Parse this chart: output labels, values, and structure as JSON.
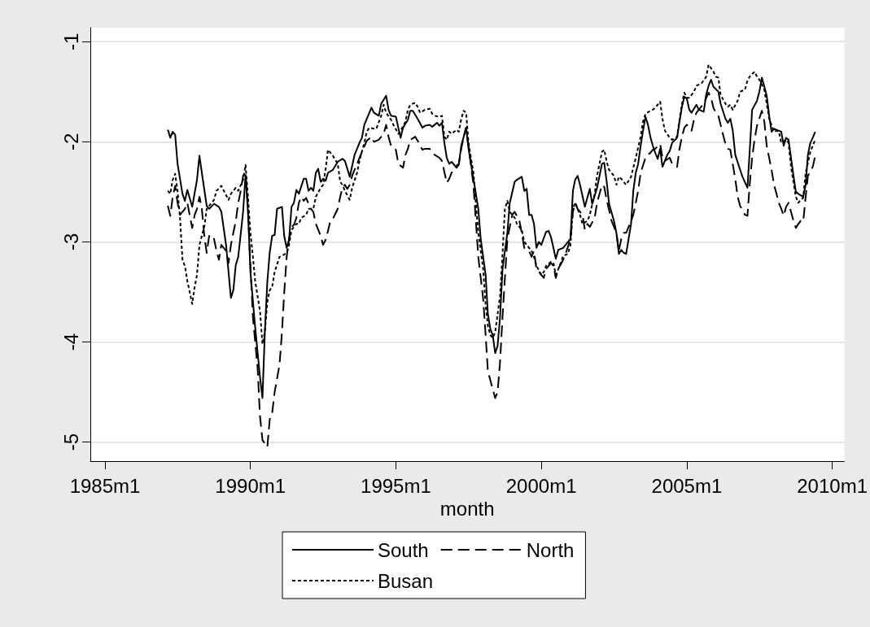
{
  "chart_data": {
    "type": "line",
    "xlabel": "month",
    "xlim": [
      "1984-07",
      "2010-06"
    ],
    "xticks": [
      {
        "value": "1985-01",
        "label": "1985m1"
      },
      {
        "value": "1990-01",
        "label": "1990m1"
      },
      {
        "value": "1995-01",
        "label": "1995m1"
      },
      {
        "value": "2000-01",
        "label": "2000m1"
      },
      {
        "value": "2005-01",
        "label": "2005m1"
      },
      {
        "value": "2010-01",
        "label": "2010m1"
      }
    ],
    "ylim": [
      -5.19,
      -0.86
    ],
    "yticks": [
      -5,
      -4,
      -3,
      -2,
      -1
    ],
    "grid": "y",
    "legend": "bottom",
    "marker": "none",
    "series": [
      {
        "name": "South",
        "color": "#000000",
        "line_style": "solid",
        "x": [
          "1987-03",
          "1987-04",
          "1987-05",
          "1987-06",
          "1987-07",
          "1987-09",
          "1987-10",
          "1987-11",
          "1988-01",
          "1988-03",
          "1988-04",
          "1988-05",
          "1988-07",
          "1988-08",
          "1988-10",
          "1988-12",
          "1989-01",
          "1989-03",
          "1989-05",
          "1989-06",
          "1989-07",
          "1989-08",
          "1989-10",
          "1989-11",
          "1989-12",
          "1990-01",
          "1990-03",
          "1990-05",
          "1990-06",
          "1990-07",
          "1990-08",
          "1990-09",
          "1990-10",
          "1990-11",
          "1990-12",
          "1991-02",
          "1991-03",
          "1991-04",
          "1991-05",
          "1991-06",
          "1991-07",
          "1991-08",
          "1991-09",
          "1991-11",
          "1991-12",
          "1992-01",
          "1992-02",
          "1992-03",
          "1992-04",
          "1992-05",
          "1992-06",
          "1992-07",
          "1992-08",
          "1992-09",
          "1992-11",
          "1993-01",
          "1993-03",
          "1993-04",
          "1993-06",
          "1993-08",
          "1993-10",
          "1993-11",
          "1993-12",
          "1994-03",
          "1994-04",
          "1994-06",
          "1994-07",
          "1994-09",
          "1994-10",
          "1994-11",
          "1995-01",
          "1995-03",
          "1995-04",
          "1995-06",
          "1995-07",
          "1995-08",
          "1995-10",
          "1995-12",
          "1996-01",
          "1996-03",
          "1996-04",
          "1996-06",
          "1996-07",
          "1996-08",
          "1996-09",
          "1996-10",
          "1996-11",
          "1996-12",
          "1997-02",
          "1997-03",
          "1997-04",
          "1997-06",
          "1997-07",
          "1997-09",
          "1997-11",
          "1997-12",
          "1998-02",
          "1998-03",
          "1998-04",
          "1998-05",
          "1998-06",
          "1998-07",
          "1998-08",
          "1998-09",
          "1998-11",
          "1998-12",
          "1999-02",
          "1999-03",
          "1999-05",
          "1999-06",
          "1999-07",
          "1999-08",
          "1999-09",
          "1999-10",
          "1999-11",
          "1999-12",
          "2000-01",
          "2000-03",
          "2000-04",
          "2000-05",
          "2000-06",
          "2000-07",
          "2000-08",
          "2000-10",
          "2000-11",
          "2001-01",
          "2001-02",
          "2001-03",
          "2001-04",
          "2001-05",
          "2001-07",
          "2001-09",
          "2001-10",
          "2001-12",
          "2002-02",
          "2002-03",
          "2002-04",
          "2002-05",
          "2002-07",
          "2002-08",
          "2002-09",
          "2002-10",
          "2002-11",
          "2002-12",
          "2003-01",
          "2003-02",
          "2003-03",
          "2003-04",
          "2003-05",
          "2003-06",
          "2003-07",
          "2003-08",
          "2003-09",
          "2003-10",
          "2003-11",
          "2003-12",
          "2004-01",
          "2004-02",
          "2004-03",
          "2004-05",
          "2004-06",
          "2004-07",
          "2004-09",
          "2004-10",
          "2004-11",
          "2004-12",
          "2005-01",
          "2005-02",
          "2005-03",
          "2005-05",
          "2005-06",
          "2005-08",
          "2005-09",
          "2005-10",
          "2005-11",
          "2005-12",
          "2006-02",
          "2006-03",
          "2006-05",
          "2006-06",
          "2006-07",
          "2006-08",
          "2006-09",
          "2006-11",
          "2006-12",
          "2007-02",
          "2007-03",
          "2007-04",
          "2007-06",
          "2007-07",
          "2007-08",
          "2007-09",
          "2007-10",
          "2007-11",
          "2007-12",
          "2008-01",
          "2008-02",
          "2008-04",
          "2008-05",
          "2008-06",
          "2008-07",
          "2008-08",
          "2008-09",
          "2008-10",
          "2008-11",
          "2009-01",
          "2009-02",
          "2009-03",
          "2009-04",
          "2009-05",
          "2009-06"
        ],
        "values": [
          -1.88,
          -1.96,
          -1.9,
          -1.93,
          -2.22,
          -2.52,
          -2.59,
          -2.48,
          -2.65,
          -2.38,
          -2.14,
          -2.31,
          -2.64,
          -2.67,
          -2.62,
          -2.65,
          -2.7,
          -3.03,
          -3.56,
          -3.48,
          -3.23,
          -3.15,
          -2.7,
          -2.33,
          -2.7,
          -3.3,
          -3.85,
          -4.35,
          -4.56,
          -3.9,
          -3.4,
          -3.1,
          -2.94,
          -2.93,
          -2.67,
          -2.65,
          -2.94,
          -3.06,
          -2.98,
          -2.65,
          -2.61,
          -2.48,
          -2.52,
          -2.37,
          -2.37,
          -2.49,
          -2.46,
          -2.49,
          -2.31,
          -2.27,
          -2.4,
          -2.37,
          -2.39,
          -2.31,
          -2.28,
          -2.2,
          -2.17,
          -2.19,
          -2.35,
          -2.13,
          -2.01,
          -1.96,
          -1.83,
          -1.66,
          -1.71,
          -1.74,
          -1.62,
          -1.54,
          -1.68,
          -1.74,
          -1.75,
          -1.96,
          -1.86,
          -1.78,
          -1.69,
          -1.69,
          -1.77,
          -1.86,
          -1.84,
          -1.83,
          -1.85,
          -1.81,
          -1.84,
          -1.81,
          -2.01,
          -2.16,
          -2.22,
          -2.2,
          -2.26,
          -2.23,
          -2.04,
          -1.86,
          -2.07,
          -2.37,
          -2.67,
          -2.97,
          -3.33,
          -3.72,
          -3.87,
          -3.93,
          -4.11,
          -4.04,
          -3.75,
          -3.27,
          -2.91,
          -2.61,
          -2.4,
          -2.38,
          -2.35,
          -2.49,
          -2.47,
          -2.73,
          -2.73,
          -2.82,
          -3.06,
          -3.0,
          -3.03,
          -2.9,
          -2.89,
          -2.95,
          -3.06,
          -3.17,
          -3.08,
          -3.06,
          -3.03,
          -2.97,
          -2.49,
          -2.38,
          -2.34,
          -2.43,
          -2.65,
          -2.47,
          -2.62,
          -2.46,
          -2.22,
          -2.21,
          -2.4,
          -2.62,
          -2.79,
          -2.91,
          -3.12,
          -3.08,
          -3.11,
          -3.12,
          -2.97,
          -2.82,
          -2.49,
          -2.31,
          -2.22,
          -2.04,
          -1.89,
          -1.75,
          -1.83,
          -1.95,
          -2.04,
          -2.11,
          -2.17,
          -2.07,
          -2.25,
          -2.13,
          -2.09,
          -2.01,
          -1.96,
          -1.8,
          -1.65,
          -1.55,
          -1.57,
          -1.68,
          -1.71,
          -1.63,
          -1.68,
          -1.7,
          -1.53,
          -1.44,
          -1.38,
          -1.45,
          -1.5,
          -1.62,
          -1.77,
          -1.81,
          -1.77,
          -1.89,
          -2.13,
          -2.28,
          -2.35,
          -2.46,
          -2.1,
          -1.68,
          -1.59,
          -1.5,
          -1.36,
          -1.45,
          -1.54,
          -1.74,
          -1.9,
          -1.87,
          -1.88,
          -1.9,
          -2.04,
          -1.96,
          -1.98,
          -2.16,
          -2.34,
          -2.5,
          -2.52,
          -2.55,
          -2.43,
          -2.13,
          -2.01,
          -1.96,
          -1.9
        ]
      },
      {
        "name": "North",
        "color": "#000000",
        "line_style": "dashed",
        "x": [
          "1987-03",
          "1987-04",
          "1987-05",
          "1987-06",
          "1987-07",
          "1987-08",
          "1987-10",
          "1987-11",
          "1988-01",
          "1988-02",
          "1988-03",
          "1988-04",
          "1988-05",
          "1988-06",
          "1988-07",
          "1988-08",
          "1988-09",
          "1988-10",
          "1988-11",
          "1988-12",
          "1989-01",
          "1989-03",
          "1989-04",
          "1989-05",
          "1989-07",
          "1989-08",
          "1989-09",
          "1989-10",
          "1989-11",
          "1989-12",
          "1990-01",
          "1990-02",
          "1990-04",
          "1990-05",
          "1990-06",
          "1990-08",
          "1990-09",
          "1990-10",
          "1990-11",
          "1991-01",
          "1991-02",
          "1991-03",
          "1991-04",
          "1991-05",
          "1991-06",
          "1991-07",
          "1991-08",
          "1991-09",
          "1991-10",
          "1991-11",
          "1991-12",
          "1992-01",
          "1992-02",
          "1992-03",
          "1992-04",
          "1992-06",
          "1992-07",
          "1992-08",
          "1992-09",
          "1992-10",
          "1992-11",
          "1993-01",
          "1993-02",
          "1993-03",
          "1993-04",
          "1993-05",
          "1993-06",
          "1993-07",
          "1993-09",
          "1993-11",
          "1994-01",
          "1994-03",
          "1994-04",
          "1994-05",
          "1994-06",
          "1994-08",
          "1994-09",
          "1994-10",
          "1994-11",
          "1994-12",
          "1995-01",
          "1995-02",
          "1995-04",
          "1995-05",
          "1995-06",
          "1995-07",
          "1995-09",
          "1995-10",
          "1995-12",
          "1996-01",
          "1996-03",
          "1996-04",
          "1996-05",
          "1996-07",
          "1996-08",
          "1996-10",
          "1996-11",
          "1996-12",
          "1997-01",
          "1997-03",
          "1997-04",
          "1997-05",
          "1997-06",
          "1997-07",
          "1997-09",
          "1997-10",
          "1997-11",
          "1998-01",
          "1998-02",
          "1998-03",
          "1998-05",
          "1998-06",
          "1998-07",
          "1998-08",
          "1998-09",
          "1998-10",
          "1998-11",
          "1998-12",
          "1999-01",
          "1999-02",
          "1999-04",
          "1999-05",
          "1999-06",
          "1999-08",
          "1999-09",
          "1999-10",
          "1999-11",
          "2000-01",
          "2000-02",
          "2000-03",
          "2000-05",
          "2000-06",
          "2000-07",
          "2000-08",
          "2000-10",
          "2000-11",
          "2001-01",
          "2001-02",
          "2001-03",
          "2001-04",
          "2001-06",
          "2001-07",
          "2001-08",
          "2001-09",
          "2001-11",
          "2001-12",
          "2002-02",
          "2002-03",
          "2002-04",
          "2002-06",
          "2002-08",
          "2002-09",
          "2002-10",
          "2002-11",
          "2002-12",
          "2003-02",
          "2003-03",
          "2003-04",
          "2003-05",
          "2003-06",
          "2003-08",
          "2003-09",
          "2003-10",
          "2003-11",
          "2003-12",
          "2004-02",
          "2004-03",
          "2004-04",
          "2004-06",
          "2004-07",
          "2004-09",
          "2004-10",
          "2004-11",
          "2004-12",
          "2005-01",
          "2005-03",
          "2005-04",
          "2005-05",
          "2005-07",
          "2005-08",
          "2005-10",
          "2005-11",
          "2005-12",
          "2006-01",
          "2006-02",
          "2006-04",
          "2006-05",
          "2006-06",
          "2006-07",
          "2006-09",
          "2006-10",
          "2006-11",
          "2007-01",
          "2007-02",
          "2007-03",
          "2007-04",
          "2007-05",
          "2007-06",
          "2007-08",
          "2007-09",
          "2007-10",
          "2007-12",
          "2008-01",
          "2008-02",
          "2008-03",
          "2008-04",
          "2008-05",
          "2008-06",
          "2008-07",
          "2008-09",
          "2008-10",
          "2008-11",
          "2008-12",
          "2009-01",
          "2009-02",
          "2009-03",
          "2009-05",
          "2009-06"
        ],
        "values": [
          -2.64,
          -2.74,
          -2.55,
          -2.44,
          -2.61,
          -2.73,
          -2.67,
          -2.61,
          -2.86,
          -2.73,
          -2.67,
          -2.55,
          -2.67,
          -2.94,
          -3.11,
          -2.94,
          -2.98,
          -2.97,
          -3.09,
          -3.18,
          -3.03,
          -3.09,
          -3.21,
          -3.03,
          -2.79,
          -2.61,
          -2.49,
          -2.34,
          -2.31,
          -2.67,
          -3.24,
          -3.75,
          -4.26,
          -4.74,
          -4.98,
          -5.05,
          -4.77,
          -4.71,
          -4.5,
          -4.23,
          -3.9,
          -3.51,
          -3.15,
          -2.97,
          -2.85,
          -2.83,
          -2.76,
          -2.61,
          -2.55,
          -2.59,
          -2.56,
          -2.62,
          -2.67,
          -2.7,
          -2.82,
          -2.94,
          -3.03,
          -2.98,
          -2.89,
          -2.79,
          -2.77,
          -2.67,
          -2.55,
          -2.46,
          -2.43,
          -2.47,
          -2.43,
          -2.34,
          -2.22,
          -2.1,
          -1.99,
          -1.95,
          -2.0,
          -1.99,
          -1.98,
          -1.92,
          -1.83,
          -1.95,
          -2.04,
          -2.07,
          -2.08,
          -2.22,
          -2.26,
          -2.13,
          -2.07,
          -1.98,
          -1.95,
          -1.99,
          -2.08,
          -2.07,
          -2.07,
          -2.11,
          -2.13,
          -2.16,
          -2.19,
          -2.41,
          -2.37,
          -2.31,
          -2.26,
          -2.22,
          -2.07,
          -1.95,
          -1.86,
          -2.04,
          -2.43,
          -2.79,
          -3.15,
          -3.57,
          -3.93,
          -4.29,
          -4.47,
          -4.56,
          -4.5,
          -4.2,
          -3.75,
          -3.36,
          -2.97,
          -2.85,
          -2.73,
          -2.7,
          -2.79,
          -2.91,
          -3.06,
          -3.09,
          -3.15,
          -3.09,
          -3.27,
          -3.33,
          -3.36,
          -3.27,
          -3.21,
          -3.24,
          -3.36,
          -3.27,
          -3.18,
          -3.12,
          -2.97,
          -2.7,
          -2.61,
          -2.67,
          -2.73,
          -2.88,
          -2.82,
          -2.85,
          -2.76,
          -2.61,
          -2.43,
          -2.45,
          -2.58,
          -2.79,
          -2.91,
          -3.09,
          -2.97,
          -2.91,
          -2.91,
          -2.79,
          -2.73,
          -2.61,
          -2.49,
          -2.31,
          -2.16,
          -2.13,
          -2.11,
          -2.08,
          -2.07,
          -2.02,
          -2.16,
          -2.19,
          -2.16,
          -2.22,
          -2.25,
          -2.07,
          -1.95,
          -1.86,
          -1.83,
          -1.89,
          -1.78,
          -1.71,
          -1.65,
          -1.62,
          -1.51,
          -1.56,
          -1.66,
          -1.71,
          -1.74,
          -1.93,
          -2.02,
          -2.07,
          -2.08,
          -2.37,
          -2.55,
          -2.64,
          -2.73,
          -2.74,
          -2.43,
          -2.16,
          -1.98,
          -1.84,
          -1.69,
          -1.8,
          -2.04,
          -2.28,
          -2.43,
          -2.52,
          -2.61,
          -2.67,
          -2.74,
          -2.65,
          -2.61,
          -2.79,
          -2.86,
          -2.82,
          -2.79,
          -2.8,
          -2.55,
          -2.34,
          -2.25,
          -2.14
        ]
      },
      {
        "name": "Busan",
        "color": "#000000",
        "line_style": "dotted",
        "x": [
          "1987-03",
          "1987-04",
          "1987-05",
          "1987-06",
          "1987-07",
          "1987-08",
          "1987-09",
          "1987-10",
          "1987-11",
          "1988-01",
          "1988-02",
          "1988-03",
          "1988-04",
          "1988-05",
          "1988-06",
          "1988-07",
          "1988-09",
          "1988-10",
          "1988-11",
          "1989-01",
          "1989-02",
          "1989-04",
          "1989-05",
          "1989-07",
          "1989-08",
          "1989-10",
          "1989-11",
          "1989-12",
          "1990-01",
          "1990-02",
          "1990-03",
          "1990-05",
          "1990-06",
          "1990-07",
          "1990-08",
          "1990-09",
          "1990-10",
          "1990-11",
          "1991-01",
          "1991-02",
          "1991-04",
          "1991-05",
          "1991-06",
          "1991-08",
          "1991-09",
          "1991-10",
          "1991-12",
          "1992-01",
          "1992-03",
          "1992-04",
          "1992-06",
          "1992-07",
          "1992-08",
          "1992-09",
          "1992-10",
          "1992-11",
          "1993-01",
          "1993-02",
          "1993-03",
          "1993-04",
          "1993-06",
          "1993-07",
          "1993-09",
          "1993-10",
          "1993-12",
          "1994-01",
          "1994-02",
          "1994-04",
          "1994-05",
          "1994-07",
          "1994-08",
          "1994-09",
          "1994-11",
          "1994-12",
          "1995-02",
          "1995-03",
          "1995-05",
          "1995-06",
          "1995-07",
          "1995-09",
          "1995-10",
          "1995-11",
          "1996-01",
          "1996-03",
          "1996-04",
          "1996-05",
          "1996-07",
          "1996-08",
          "1996-09",
          "1996-10",
          "1996-11",
          "1996-12",
          "1997-02",
          "1997-03",
          "1997-04",
          "1997-05",
          "1997-06",
          "1997-07",
          "1997-09",
          "1997-10",
          "1997-11",
          "1998-01",
          "1998-02",
          "1998-03",
          "1998-04",
          "1998-05",
          "1998-06",
          "1998-08",
          "1998-09",
          "1998-10",
          "1998-11",
          "1998-12",
          "1999-02",
          "1999-03",
          "1999-05",
          "1999-06",
          "1999-08",
          "1999-09",
          "1999-10",
          "1999-11",
          "2000-01",
          "2000-02",
          "2000-03",
          "2000-05",
          "2000-06",
          "2000-07",
          "2000-09",
          "2000-10",
          "2000-12",
          "2001-01",
          "2001-02",
          "2001-03",
          "2001-05",
          "2001-06",
          "2001-08",
          "2001-09",
          "2001-11",
          "2001-12",
          "2002-02",
          "2002-03",
          "2002-04",
          "2002-05",
          "2002-07",
          "2002-08",
          "2002-09",
          "2002-10",
          "2002-12",
          "2003-02",
          "2003-03",
          "2003-04",
          "2003-06",
          "2003-07",
          "2003-08",
          "2003-10",
          "2003-11",
          "2003-12",
          "2004-02",
          "2004-03",
          "2004-04",
          "2004-06",
          "2004-07",
          "2004-09",
          "2004-10",
          "2004-11",
          "2004-12",
          "2005-01",
          "2005-02",
          "2005-04",
          "2005-05",
          "2005-07",
          "2005-09",
          "2005-10",
          "2005-12",
          "2006-01",
          "2006-02",
          "2006-03",
          "2006-05",
          "2006-06",
          "2006-07",
          "2006-08",
          "2006-10",
          "2006-11",
          "2007-01",
          "2007-02",
          "2007-03",
          "2007-05",
          "2007-06",
          "2007-07",
          "2007-09",
          "2007-10",
          "2007-11",
          "2008-01",
          "2008-02",
          "2008-03",
          "2008-04",
          "2008-06",
          "2008-07",
          "2008-08",
          "2008-10",
          "2008-11",
          "2008-12",
          "2009-01",
          "2009-02",
          "2009-04",
          "2009-05",
          "2009-06"
        ],
        "values": [
          -2.49,
          -2.52,
          -2.38,
          -2.32,
          -2.49,
          -2.76,
          -3.18,
          -3.24,
          -3.39,
          -3.62,
          -3.45,
          -3.33,
          -3.03,
          -2.94,
          -2.85,
          -2.67,
          -2.61,
          -2.58,
          -2.49,
          -2.44,
          -2.49,
          -2.58,
          -2.52,
          -2.46,
          -2.49,
          -2.38,
          -2.23,
          -2.55,
          -2.91,
          -3.15,
          -3.39,
          -3.69,
          -4.02,
          -3.9,
          -3.6,
          -3.48,
          -3.45,
          -3.3,
          -3.15,
          -3.14,
          -3.11,
          -3.03,
          -2.88,
          -2.82,
          -2.82,
          -2.76,
          -2.73,
          -2.67,
          -2.67,
          -2.55,
          -2.46,
          -2.43,
          -2.28,
          -2.08,
          -2.11,
          -2.14,
          -2.22,
          -2.4,
          -2.43,
          -2.49,
          -2.58,
          -2.46,
          -2.31,
          -2.19,
          -2.01,
          -1.9,
          -1.86,
          -1.87,
          -1.87,
          -1.74,
          -1.63,
          -1.71,
          -1.78,
          -1.83,
          -1.92,
          -1.89,
          -1.8,
          -1.68,
          -1.63,
          -1.61,
          -1.65,
          -1.71,
          -1.68,
          -1.67,
          -1.72,
          -1.74,
          -1.75,
          -1.74,
          -1.95,
          -1.98,
          -1.9,
          -1.92,
          -1.88,
          -1.9,
          -1.77,
          -1.69,
          -1.71,
          -2.01,
          -2.31,
          -2.61,
          -2.91,
          -3.27,
          -3.63,
          -3.84,
          -3.93,
          -3.96,
          -3.9,
          -3.54,
          -3.12,
          -2.67,
          -2.59,
          -2.7,
          -2.76,
          -2.82,
          -2.88,
          -3.0,
          -3.06,
          -3.09,
          -3.15,
          -3.24,
          -3.33,
          -3.3,
          -3.24,
          -3.2,
          -3.21,
          -3.33,
          -3.21,
          -3.14,
          -3.12,
          -3.03,
          -2.67,
          -2.61,
          -2.73,
          -2.82,
          -2.79,
          -2.73,
          -2.52,
          -2.34,
          -2.1,
          -2.08,
          -2.2,
          -2.28,
          -2.34,
          -2.43,
          -2.35,
          -2.37,
          -2.43,
          -2.35,
          -2.26,
          -2.16,
          -1.95,
          -1.8,
          -1.72,
          -1.69,
          -1.68,
          -1.66,
          -1.6,
          -1.77,
          -1.89,
          -1.96,
          -1.98,
          -1.95,
          -1.78,
          -1.62,
          -1.51,
          -1.56,
          -1.56,
          -1.5,
          -1.44,
          -1.42,
          -1.35,
          -1.23,
          -1.3,
          -1.35,
          -1.36,
          -1.53,
          -1.62,
          -1.65,
          -1.63,
          -1.68,
          -1.59,
          -1.5,
          -1.48,
          -1.39,
          -1.35,
          -1.3,
          -1.35,
          -1.38,
          -1.48,
          -1.62,
          -1.77,
          -1.9,
          -1.89,
          -1.9,
          -2.01,
          -1.98,
          -2.01,
          -2.25,
          -2.55,
          -2.61,
          -2.58,
          -2.56,
          -2.31,
          -2.1,
          -2.04,
          -1.98
        ]
      }
    ]
  }
}
